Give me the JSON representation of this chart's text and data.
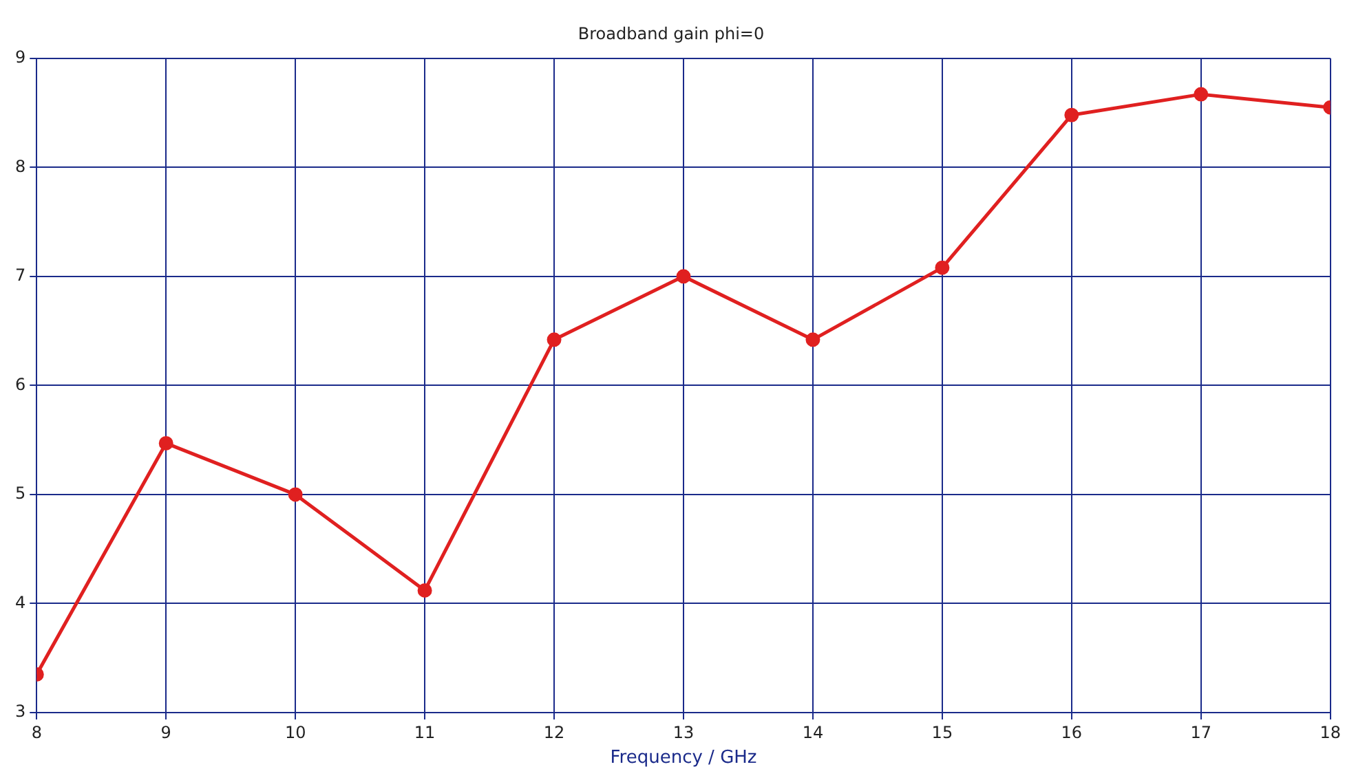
{
  "chart_data": {
    "type": "line",
    "title": "Broadband gain phi=0",
    "xlabel": "Frequency / GHz",
    "x": [
      8,
      9,
      10,
      11,
      12,
      13,
      14,
      15,
      16,
      17,
      18
    ],
    "series": [
      {
        "color": "#e02020",
        "values": [
          3.35,
          5.47,
          5.0,
          4.12,
          6.42,
          7.0,
          6.42,
          7.08,
          8.48,
          8.67,
          8.55
        ]
      }
    ],
    "xlim": [
      8,
      18
    ],
    "xticks": [
      8,
      9,
      10,
      11,
      12,
      13,
      14,
      15,
      16,
      17,
      18
    ],
    "ylim": [
      3,
      9
    ],
    "yticks": [
      3,
      4,
      5,
      6,
      7,
      8,
      9
    ],
    "grid": true,
    "marker": "circle",
    "line_style": "solid",
    "legend": false
  }
}
